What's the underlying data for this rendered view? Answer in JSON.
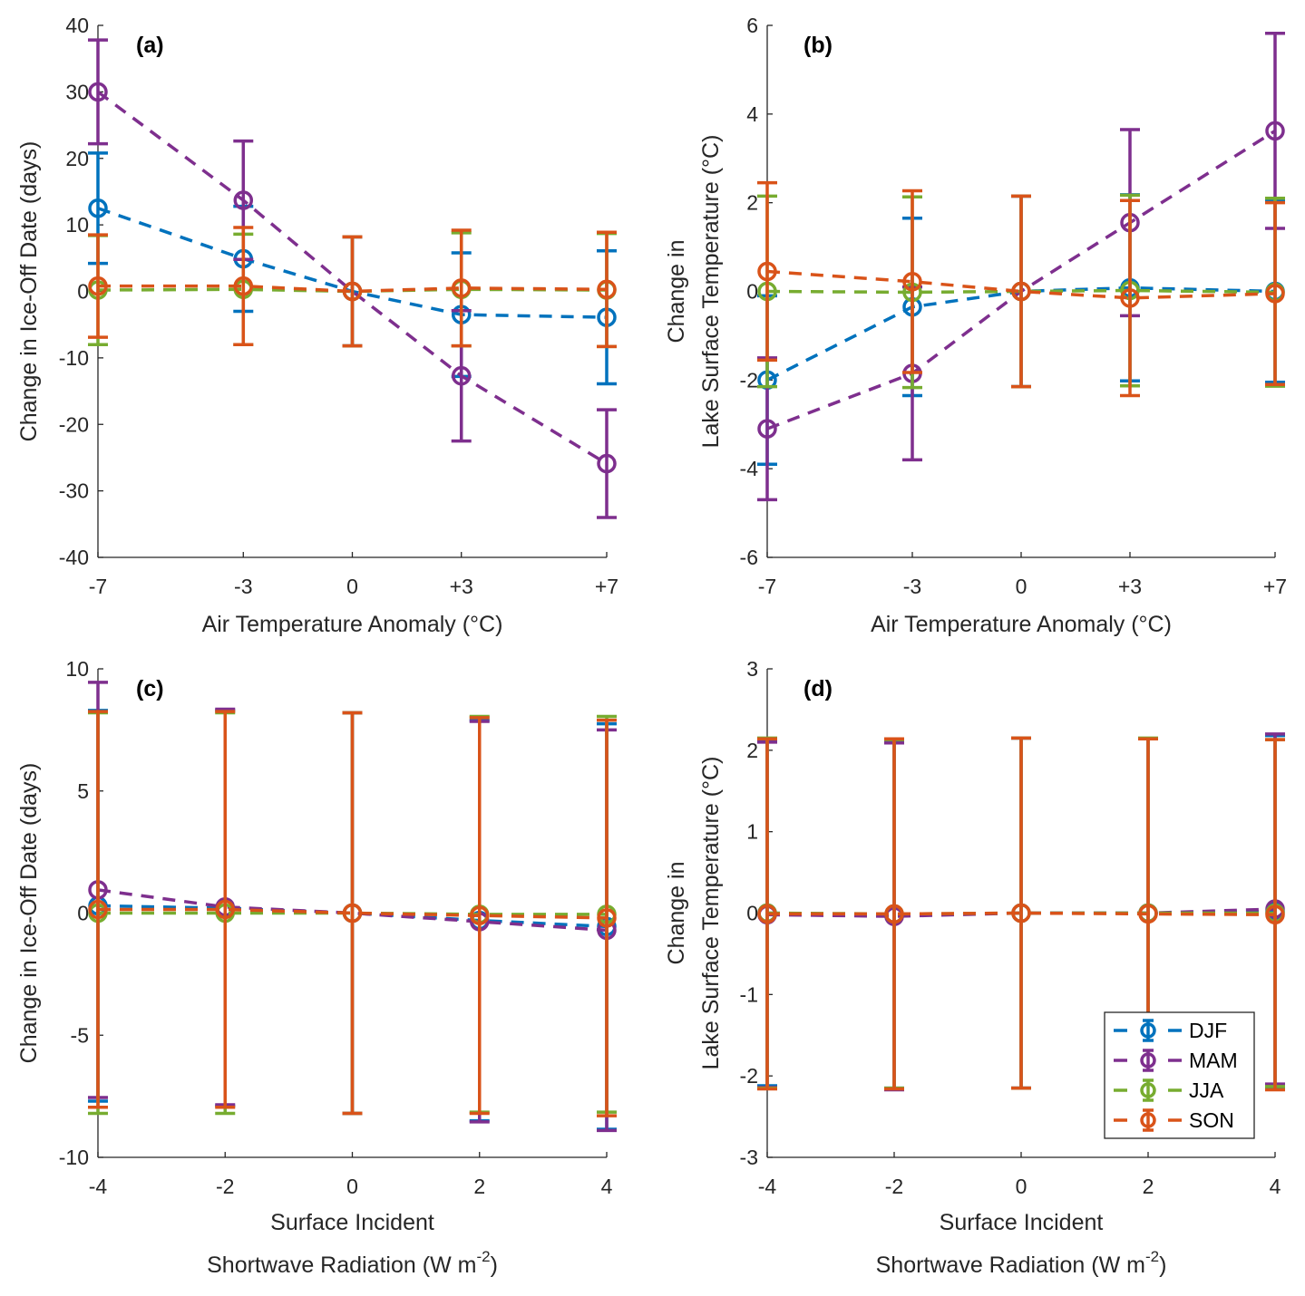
{
  "figure": {
    "legend": {
      "placement": "bottom-right of panel (d)",
      "entries": [
        "DJF",
        "MAM",
        "JJA",
        "SON"
      ]
    },
    "colors": {
      "DJF": "#0072BD",
      "MAM": "#7E2F8E",
      "JJA": "#77AC30",
      "SON": "#D95319"
    }
  },
  "chart_data": [
    {
      "id": "a",
      "type": "line",
      "panel_label": "(a)",
      "xlabel": "Air Temperature Anomaly (°C)",
      "ylabel": [
        "Change in Ice-Off Date (days)"
      ],
      "x": [
        -7,
        -3,
        0,
        3,
        7
      ],
      "xtick_labels": [
        "-7",
        "-3",
        "0",
        "+3",
        "+7"
      ],
      "ylim": [
        -40,
        40
      ],
      "yticks": [
        -40,
        -30,
        -20,
        -10,
        0,
        10,
        20,
        30,
        40
      ],
      "ytick_labels": [
        "-40",
        "-30",
        "-20",
        "-10",
        "0",
        "10",
        "20",
        "30",
        "40"
      ],
      "series": [
        {
          "name": "DJF",
          "values": [
            12.5,
            4.9,
            0,
            -3.5,
            -3.9
          ],
          "err": [
            8.3,
            7.9,
            8.2,
            9.3,
            10.0
          ]
        },
        {
          "name": "MAM",
          "values": [
            30.0,
            13.7,
            0,
            -12.7,
            -25.9
          ],
          "err": [
            7.8,
            8.9,
            8.2,
            9.8,
            8.1
          ]
        },
        {
          "name": "JJA",
          "values": [
            0.2,
            0.3,
            0,
            0.3,
            0.2
          ],
          "err": [
            8.2,
            8.3,
            8.2,
            8.5,
            8.5
          ]
        },
        {
          "name": "SON",
          "values": [
            0.8,
            0.8,
            0,
            0.5,
            0.3
          ],
          "err": [
            7.7,
            8.8,
            8.2,
            8.7,
            8.6
          ]
        }
      ]
    },
    {
      "id": "b",
      "type": "line",
      "panel_label": "(b)",
      "xlabel": "Air Temperature Anomaly (°C)",
      "ylabel": [
        "Change in",
        "Lake Surface Temperature (°C)"
      ],
      "x": [
        -7,
        -3,
        0,
        3,
        7
      ],
      "xtick_labels": [
        "-7",
        "-3",
        "0",
        "+3",
        "+7"
      ],
      "ylim": [
        -6,
        6
      ],
      "yticks": [
        -6,
        -4,
        -2,
        0,
        2,
        4,
        6
      ],
      "ytick_labels": [
        "-6",
        "-4",
        "-2",
        "0",
        "2",
        "4",
        "6"
      ],
      "series": [
        {
          "name": "DJF",
          "values": [
            -2.0,
            -0.35,
            0,
            0.08,
            0.0
          ],
          "err": [
            1.9,
            2.0,
            2.15,
            2.1,
            2.05
          ]
        },
        {
          "name": "MAM",
          "values": [
            -3.1,
            -1.85,
            0,
            1.55,
            3.62
          ],
          "err": [
            1.6,
            1.95,
            2.15,
            2.1,
            2.2
          ]
        },
        {
          "name": "JJA",
          "values": [
            0.0,
            -0.02,
            0,
            0.02,
            -0.02
          ],
          "err": [
            2.15,
            2.15,
            2.15,
            2.15,
            2.12
          ]
        },
        {
          "name": "SON",
          "values": [
            0.45,
            0.22,
            0,
            -0.15,
            -0.05
          ],
          "err": [
            2.0,
            2.05,
            2.15,
            2.2,
            2.05
          ]
        }
      ]
    },
    {
      "id": "c",
      "type": "line",
      "panel_label": "(c)",
      "xlabel": [
        "Surface Incident",
        "Shortwave Radiation (W m",
        "-2",
        ")"
      ],
      "ylabel": [
        "Change in Ice-Off Date (days)"
      ],
      "x": [
        -4,
        -2,
        0,
        2,
        4
      ],
      "xtick_labels": [
        "-4",
        "-2",
        "0",
        "2",
        "4"
      ],
      "ylim": [
        -10,
        10
      ],
      "yticks": [
        -10,
        -5,
        0,
        5,
        10
      ],
      "ytick_labels": [
        "-10",
        "-5",
        "0",
        "5",
        "10"
      ],
      "series": [
        {
          "name": "DJF",
          "values": [
            0.3,
            0.2,
            0,
            -0.3,
            -0.55
          ],
          "err": [
            8.0,
            8.1,
            8.2,
            8.2,
            8.3
          ]
        },
        {
          "name": "MAM",
          "values": [
            0.95,
            0.25,
            0,
            -0.35,
            -0.7
          ],
          "err": [
            8.5,
            8.1,
            8.2,
            8.2,
            8.2
          ]
        },
        {
          "name": "JJA",
          "values": [
            0.0,
            0.0,
            0,
            -0.05,
            -0.05
          ],
          "err": [
            8.2,
            8.2,
            8.2,
            8.1,
            8.1
          ]
        },
        {
          "name": "SON",
          "values": [
            0.15,
            0.15,
            0,
            -0.1,
            -0.2
          ],
          "err": [
            8.1,
            8.1,
            8.2,
            8.1,
            8.1
          ]
        }
      ]
    },
    {
      "id": "d",
      "type": "line",
      "panel_label": "(d)",
      "xlabel": [
        "Surface Incident",
        "Shortwave Radiation (W m",
        "-2",
        ")"
      ],
      "ylabel": [
        "Change in",
        "Lake Surface Temperature (°C)"
      ],
      "x": [
        -4,
        -2,
        0,
        2,
        4
      ],
      "xtick_labels": [
        "-4",
        "-2",
        "0",
        "2",
        "4"
      ],
      "ylim": [
        -3,
        3
      ],
      "yticks": [
        -3,
        -2,
        -1,
        0,
        1,
        2,
        3
      ],
      "ytick_labels": [
        "-3",
        "-2",
        "-1",
        "0",
        "1",
        "2",
        "3"
      ],
      "series": [
        {
          "name": "DJF",
          "values": [
            0.0,
            -0.02,
            0,
            0.0,
            0.02
          ],
          "err": [
            2.12,
            2.13,
            2.15,
            2.14,
            2.16
          ]
        },
        {
          "name": "MAM",
          "values": [
            -0.02,
            -0.04,
            0,
            0.0,
            0.05
          ],
          "err": [
            2.12,
            2.13,
            2.15,
            2.14,
            2.15
          ]
        },
        {
          "name": "JJA",
          "values": [
            0.0,
            -0.01,
            0,
            0.0,
            0.0
          ],
          "err": [
            2.15,
            2.14,
            2.15,
            2.15,
            2.13
          ]
        },
        {
          "name": "SON",
          "values": [
            -0.01,
            -0.01,
            0,
            -0.01,
            -0.02
          ],
          "err": [
            2.15,
            2.15,
            2.15,
            2.15,
            2.15
          ]
        }
      ]
    }
  ]
}
